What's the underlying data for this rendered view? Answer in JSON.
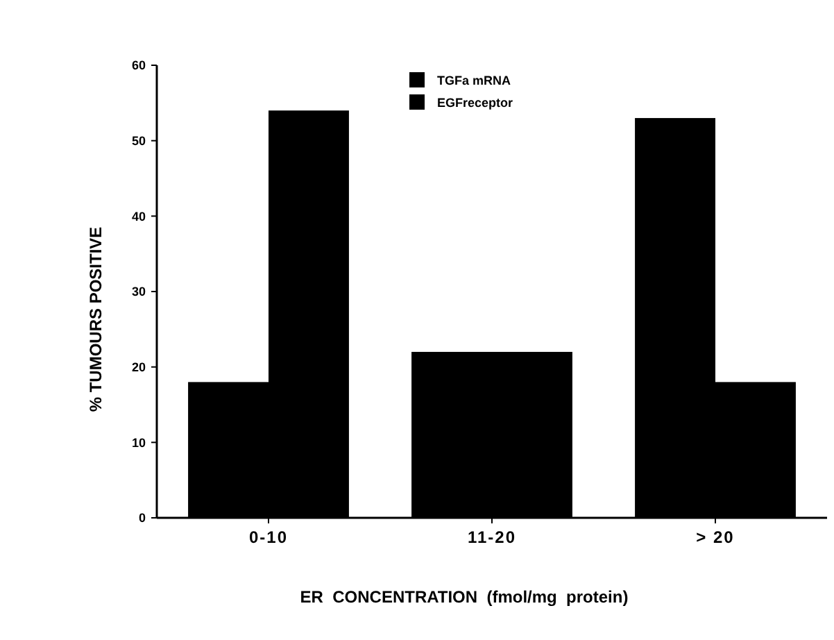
{
  "chart_data": {
    "type": "bar",
    "xlabel": "ER  CONCENTRATION  (fmol/mg  protein)",
    "ylabel": "% TUMOURS POSITIVE",
    "categories": [
      "0-10",
      "11-20",
      "> 20"
    ],
    "series": [
      {
        "name": "TGFa mRNA",
        "color": "#000000",
        "values": [
          18,
          22,
          53
        ]
      },
      {
        "name": "EGFreceptor",
        "color": "#000000",
        "values": [
          54,
          22,
          18
        ]
      }
    ],
    "ylim": [
      0,
      60
    ],
    "yticks": [
      0,
      10,
      20,
      30,
      40,
      50,
      60
    ],
    "grid": false,
    "legend": "top"
  }
}
